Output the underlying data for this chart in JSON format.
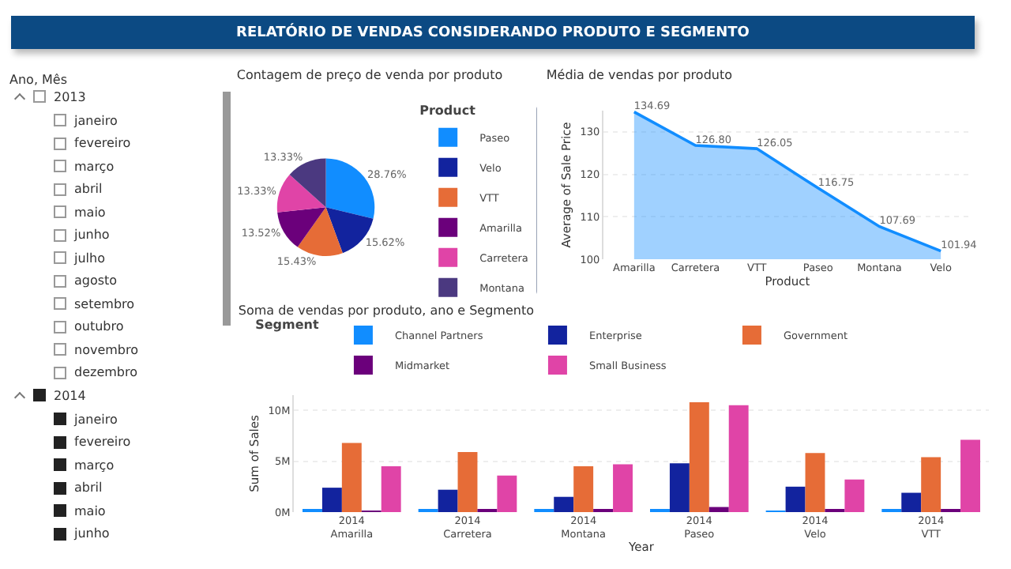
{
  "chart_data": [
    {
      "type": "other",
      "title": "RELATÓRIO DE VENDAS CONSIDERANDO PRODUTO E SEGMENTO",
      "subtitle": "Ano, Mês",
      "annotations": [
        "2013",
        "janeiro",
        "fevereiro",
        "março",
        "abril",
        "maio",
        "junho",
        "julho",
        "agosto",
        "setembro",
        "outubro",
        "novembro",
        "dezembro",
        "2014",
        "janeiro",
        "fevereiro",
        "março",
        "abril",
        "maio",
        "junho"
      ]
    },
    {
      "type": "pie",
      "title": "Contagem de preço de venda por produto",
      "legend_title": "Product",
      "legend": "right",
      "categories": [
        "Paseo",
        "Velo",
        "VTT",
        "Amarilla",
        "Carretera",
        "Montana"
      ],
      "values": [
        28.76,
        15.62,
        15.43,
        13.52,
        13.33,
        13.33
      ],
      "value_labels": [
        "28.76%",
        "15.62%",
        "15.43%",
        "13.52%",
        "13.33%",
        "13.33%"
      ],
      "colors": [
        "#118dff",
        "#12239e",
        "#e66c37",
        "#6b007b",
        "#e044a7",
        "#4b3980"
      ]
    },
    {
      "type": "area",
      "title": "Média de vendas por produto",
      "xlabel": "Product",
      "ylabel": "Average of Sale Price",
      "categories": [
        "Amarilla",
        "Carretera",
        "VTT",
        "Paseo",
        "Montana",
        "Velo"
      ],
      "series": [
        {
          "color": "#118dff",
          "values": [
            134.69,
            126.8,
            126.05,
            116.75,
            107.69,
            101.94
          ],
          "value_labels": [
            "134.69",
            "126.80",
            "126.05",
            "116.75",
            "107.69",
            "101.94"
          ]
        }
      ],
      "ylim": [
        100,
        135
      ],
      "yticks": [
        100,
        110,
        120,
        130
      ],
      "grid": "y"
    },
    {
      "type": "bar",
      "title": "Soma de vendas por produto, ano e Segmento",
      "xlabel": "Year",
      "ylabel": "Sum of Sales",
      "legend_title": "Segment",
      "legend": "top left",
      "grid": "y",
      "categories": [
        "2014\nAmarilla",
        "2014\nCarretera",
        "2014\nMontana",
        "2014\nPaseo",
        "2014\nVelo",
        "2014\nVTT"
      ],
      "ylim": [
        0,
        11.5
      ],
      "yticks": [
        {
          "value": 0,
          "label": "0M"
        },
        {
          "value": 5,
          "label": "5M"
        },
        {
          "value": 10,
          "label": "10M"
        }
      ],
      "series": [
        {
          "name": "Channel Partners",
          "color": "#118dff",
          "values": [
            0.2,
            0.2,
            0.2,
            0.2,
            0.1,
            0.2
          ]
        },
        {
          "name": "Enterprise",
          "color": "#12239e",
          "values": [
            2.4,
            2.2,
            1.5,
            4.8,
            2.5,
            1.9
          ]
        },
        {
          "name": "Government",
          "color": "#e66c37",
          "values": [
            6.8,
            5.9,
            4.5,
            10.8,
            5.8,
            5.4
          ]
        },
        {
          "name": "Midmarket",
          "color": "#6b007b",
          "values": [
            0.1,
            0.2,
            0.2,
            0.5,
            0.2,
            0.2
          ]
        },
        {
          "name": "Small Business",
          "color": "#e044a7",
          "values": [
            4.5,
            3.6,
            4.7,
            10.5,
            3.2,
            7.1
          ]
        }
      ]
    }
  ]
}
